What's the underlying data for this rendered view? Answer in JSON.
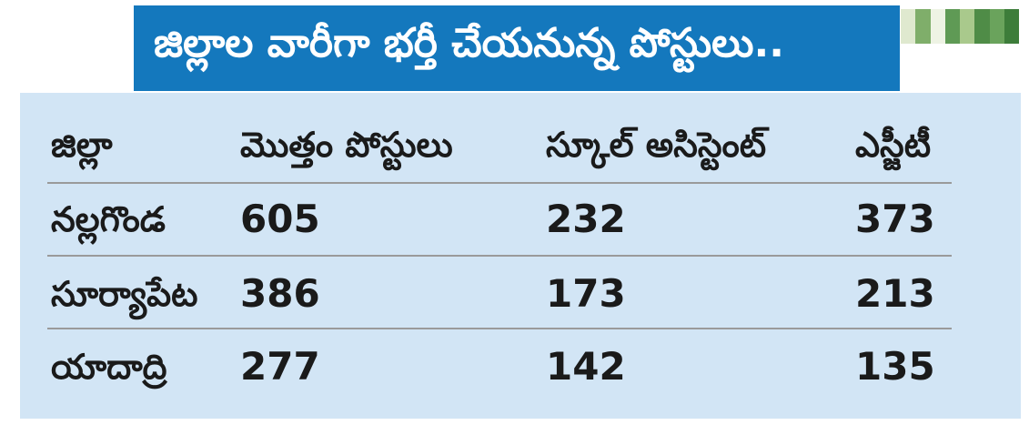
{
  "title": "జిల్లాల వారీగా భర్తీ చేయనున్న పోస్టులు..",
  "colors": {
    "banner": "#1478bd",
    "panel": "#d2e5f5",
    "text": "#1a1a1a"
  },
  "table": {
    "headers": [
      "జిల్లా",
      "మొత్తం పోస్టులు",
      "స్కూల్ అసిస్టెంట్",
      "ఎస్జీటీ"
    ],
    "rows": [
      [
        "నల్లగొండ",
        "605",
        "232",
        "373"
      ],
      [
        "సూర్యాపేట",
        "386",
        "173",
        "213"
      ],
      [
        "యాదాద్రి",
        "277",
        "142",
        "135"
      ]
    ]
  }
}
